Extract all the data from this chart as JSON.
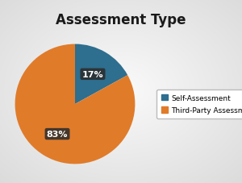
{
  "title": "Assessment Type",
  "slices": [
    17,
    83
  ],
  "labels": [
    "Self-Assessment",
    "Third-Party Assessment"
  ],
  "colors": [
    "#2e6e8e",
    "#e07b2a"
  ],
  "autopct_labels": [
    "17%",
    "83%"
  ],
  "startangle": 90,
  "background_color": "#d8d8d8",
  "title_fontsize": 12,
  "title_fontweight": "bold",
  "legend_fontsize": 6.5,
  "pct_fontsize": 8,
  "pct_color": "white",
  "pct_fontweight": "bold",
  "pct_box_color": "#2a2a2a"
}
